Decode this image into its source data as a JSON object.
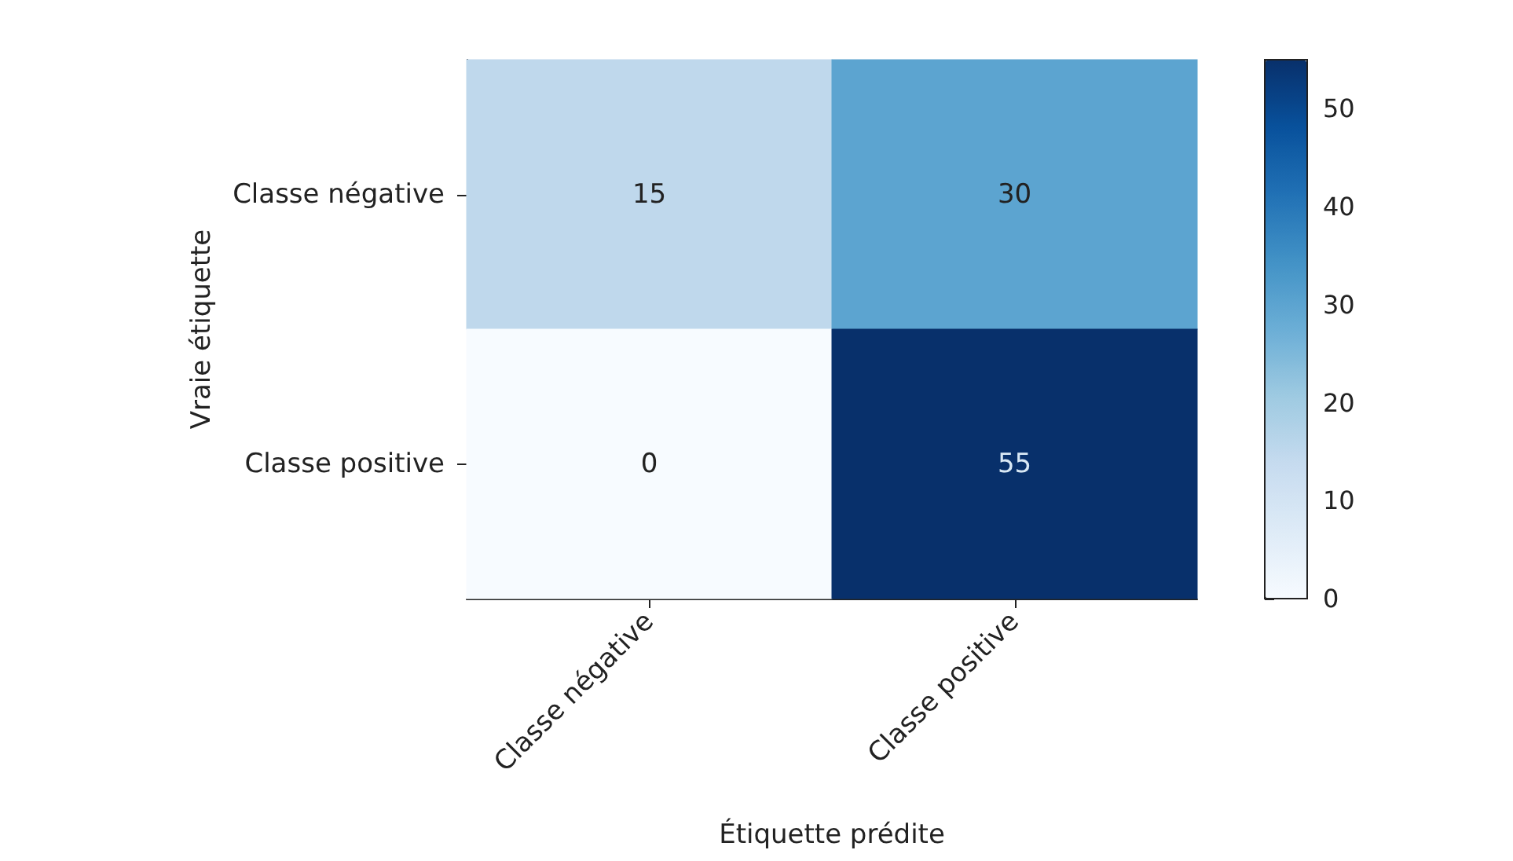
{
  "chart_data": {
    "type": "heatmap",
    "xlabel": "Étiquette prédite",
    "ylabel": "Vraie étiquette",
    "categories": [
      "Classe négative",
      "Classe positive"
    ],
    "y_categories": [
      "Classe négative",
      "Classe positive"
    ],
    "cells": [
      [
        15,
        30
      ],
      [
        0,
        55
      ]
    ],
    "clim": [
      0,
      55
    ],
    "cticks": [
      0,
      10,
      20,
      30,
      40,
      50
    ],
    "data_labels": true
  }
}
